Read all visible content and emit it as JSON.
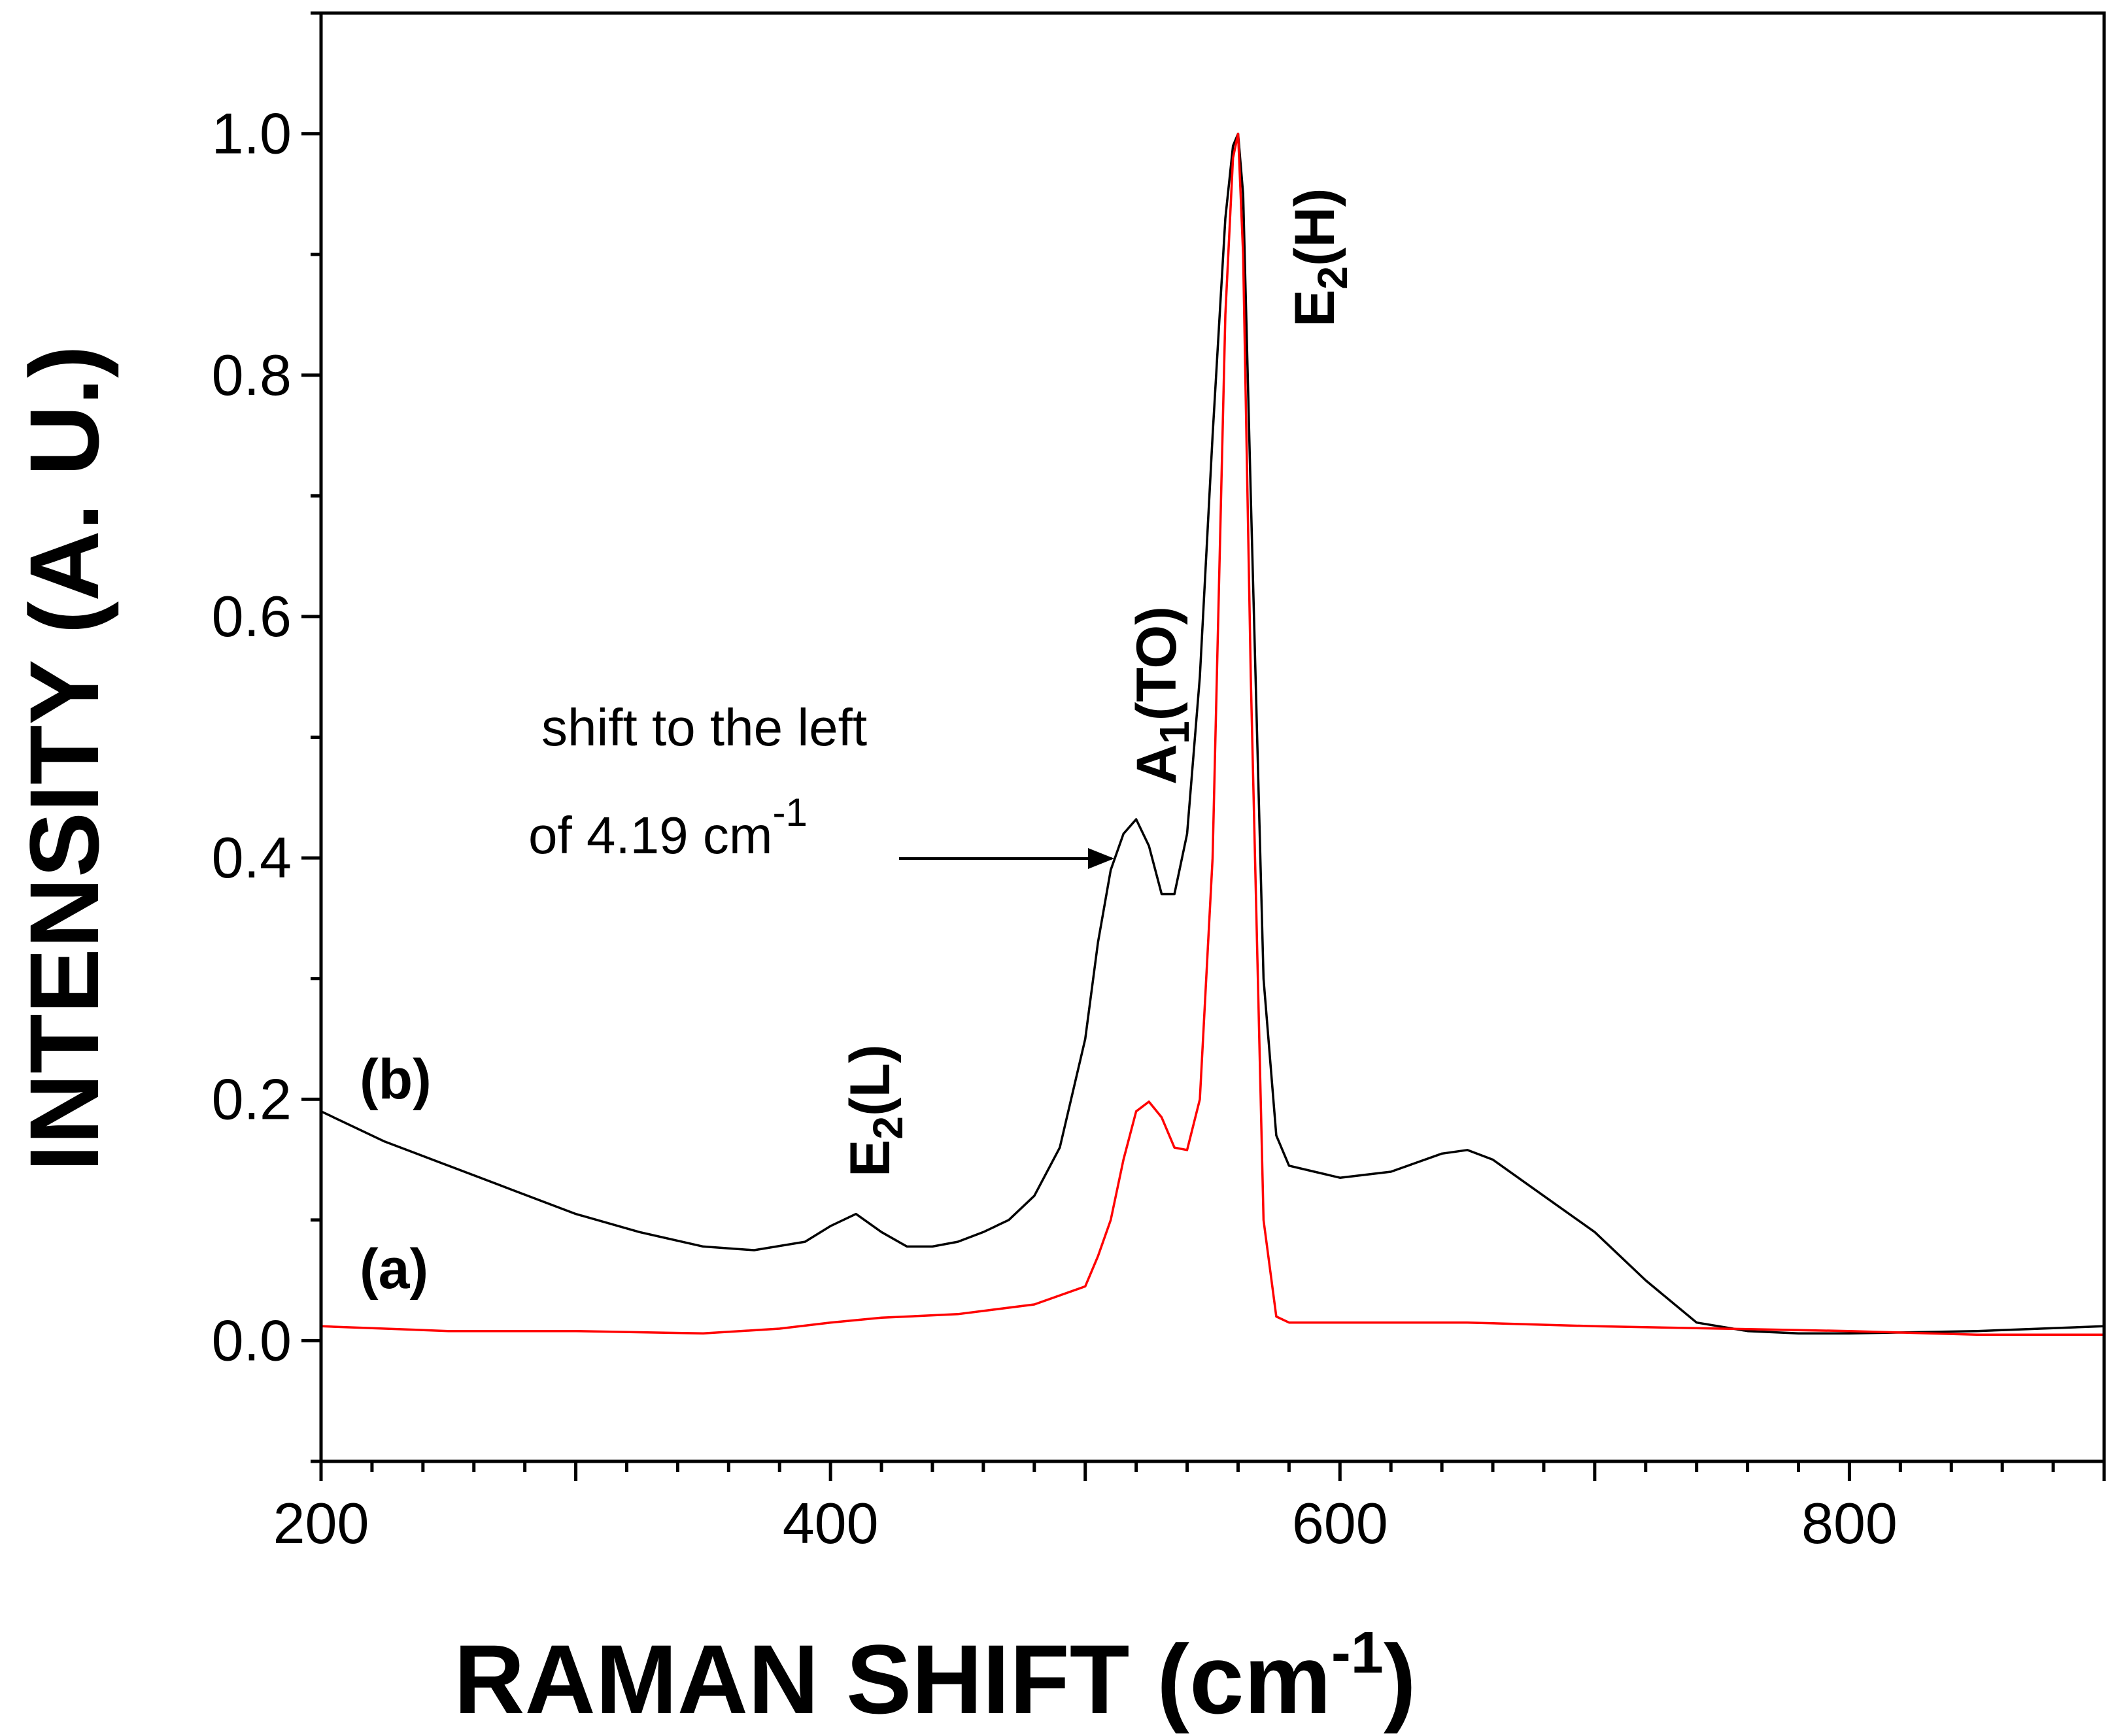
{
  "chart_data": {
    "type": "line",
    "title": "",
    "xlabel": "RAMAN SHIFT (cm",
    "xlabel_sup": "-1",
    "xlabel_close": ")",
    "ylabel": "INTENSITY (A. U.)",
    "xlim": [
      200,
      900
    ],
    "ylim": [
      -0.1,
      1.1
    ],
    "grid": false,
    "x_ticks": [
      200,
      400,
      600,
      800
    ],
    "x_tick_labels": [
      "200",
      "400",
      "600",
      "800"
    ],
    "y_ticks": [
      0.0,
      0.2,
      0.4,
      0.6,
      0.8,
      1.0
    ],
    "y_tick_labels": [
      "0.0",
      "0.2",
      "0.4",
      "0.6",
      "0.8",
      "1.0"
    ],
    "series": [
      {
        "name": "(a)",
        "color": "#ff0000",
        "x": [
          200,
          250,
          300,
          350,
          380,
          400,
          420,
          450,
          480,
          500,
          505,
          510,
          515,
          520,
          525,
          530,
          535,
          540,
          545,
          550,
          555,
          558,
          560,
          562,
          565,
          570,
          575,
          580,
          600,
          650,
          700,
          750,
          800,
          850,
          900
        ],
        "y": [
          0.012,
          0.008,
          0.008,
          0.006,
          0.01,
          0.015,
          0.019,
          0.022,
          0.03,
          0.045,
          0.07,
          0.1,
          0.15,
          0.19,
          0.198,
          0.185,
          0.16,
          0.158,
          0.2,
          0.4,
          0.85,
          0.98,
          1.0,
          0.9,
          0.55,
          0.1,
          0.02,
          0.015,
          0.015,
          0.015,
          0.012,
          0.01,
          0.008,
          0.005,
          0.005
        ]
      },
      {
        "name": "(b)",
        "color": "#000000",
        "x": [
          200,
          225,
          250,
          275,
          300,
          325,
          350,
          370,
          390,
          400,
          410,
          420,
          430,
          440,
          450,
          460,
          470,
          480,
          490,
          500,
          505,
          510,
          515,
          520,
          525,
          530,
          535,
          540,
          545,
          550,
          555,
          558,
          560,
          562,
          565,
          570,
          575,
          580,
          590,
          600,
          620,
          640,
          650,
          660,
          680,
          700,
          720,
          740,
          760,
          780,
          800,
          850,
          900
        ],
        "y": [
          0.19,
          0.165,
          0.145,
          0.125,
          0.105,
          0.09,
          0.078,
          0.075,
          0.082,
          0.095,
          0.105,
          0.09,
          0.078,
          0.078,
          0.082,
          0.09,
          0.1,
          0.12,
          0.16,
          0.25,
          0.33,
          0.39,
          0.42,
          0.432,
          0.41,
          0.37,
          0.37,
          0.42,
          0.55,
          0.75,
          0.93,
          0.99,
          1.0,
          0.95,
          0.7,
          0.3,
          0.17,
          0.145,
          0.14,
          0.135,
          0.14,
          0.155,
          0.158,
          0.15,
          0.12,
          0.09,
          0.05,
          0.015,
          0.008,
          0.006,
          0.006,
          0.008,
          0.012
        ]
      }
    ],
    "annotations": {
      "e2l": {
        "base": "E",
        "sub": "2",
        "rest": "(L)"
      },
      "a1to": {
        "base": "A",
        "sub": "1",
        "rest": "(TO)"
      },
      "e2h": {
        "base": "E",
        "sub": "2",
        "rest": "(H)"
      },
      "label_a": "(a)",
      "label_b": "(b)",
      "shift_line1": "shift to the left",
      "shift_line2": "of 4.19 cm",
      "shift_sup": "-1"
    }
  }
}
